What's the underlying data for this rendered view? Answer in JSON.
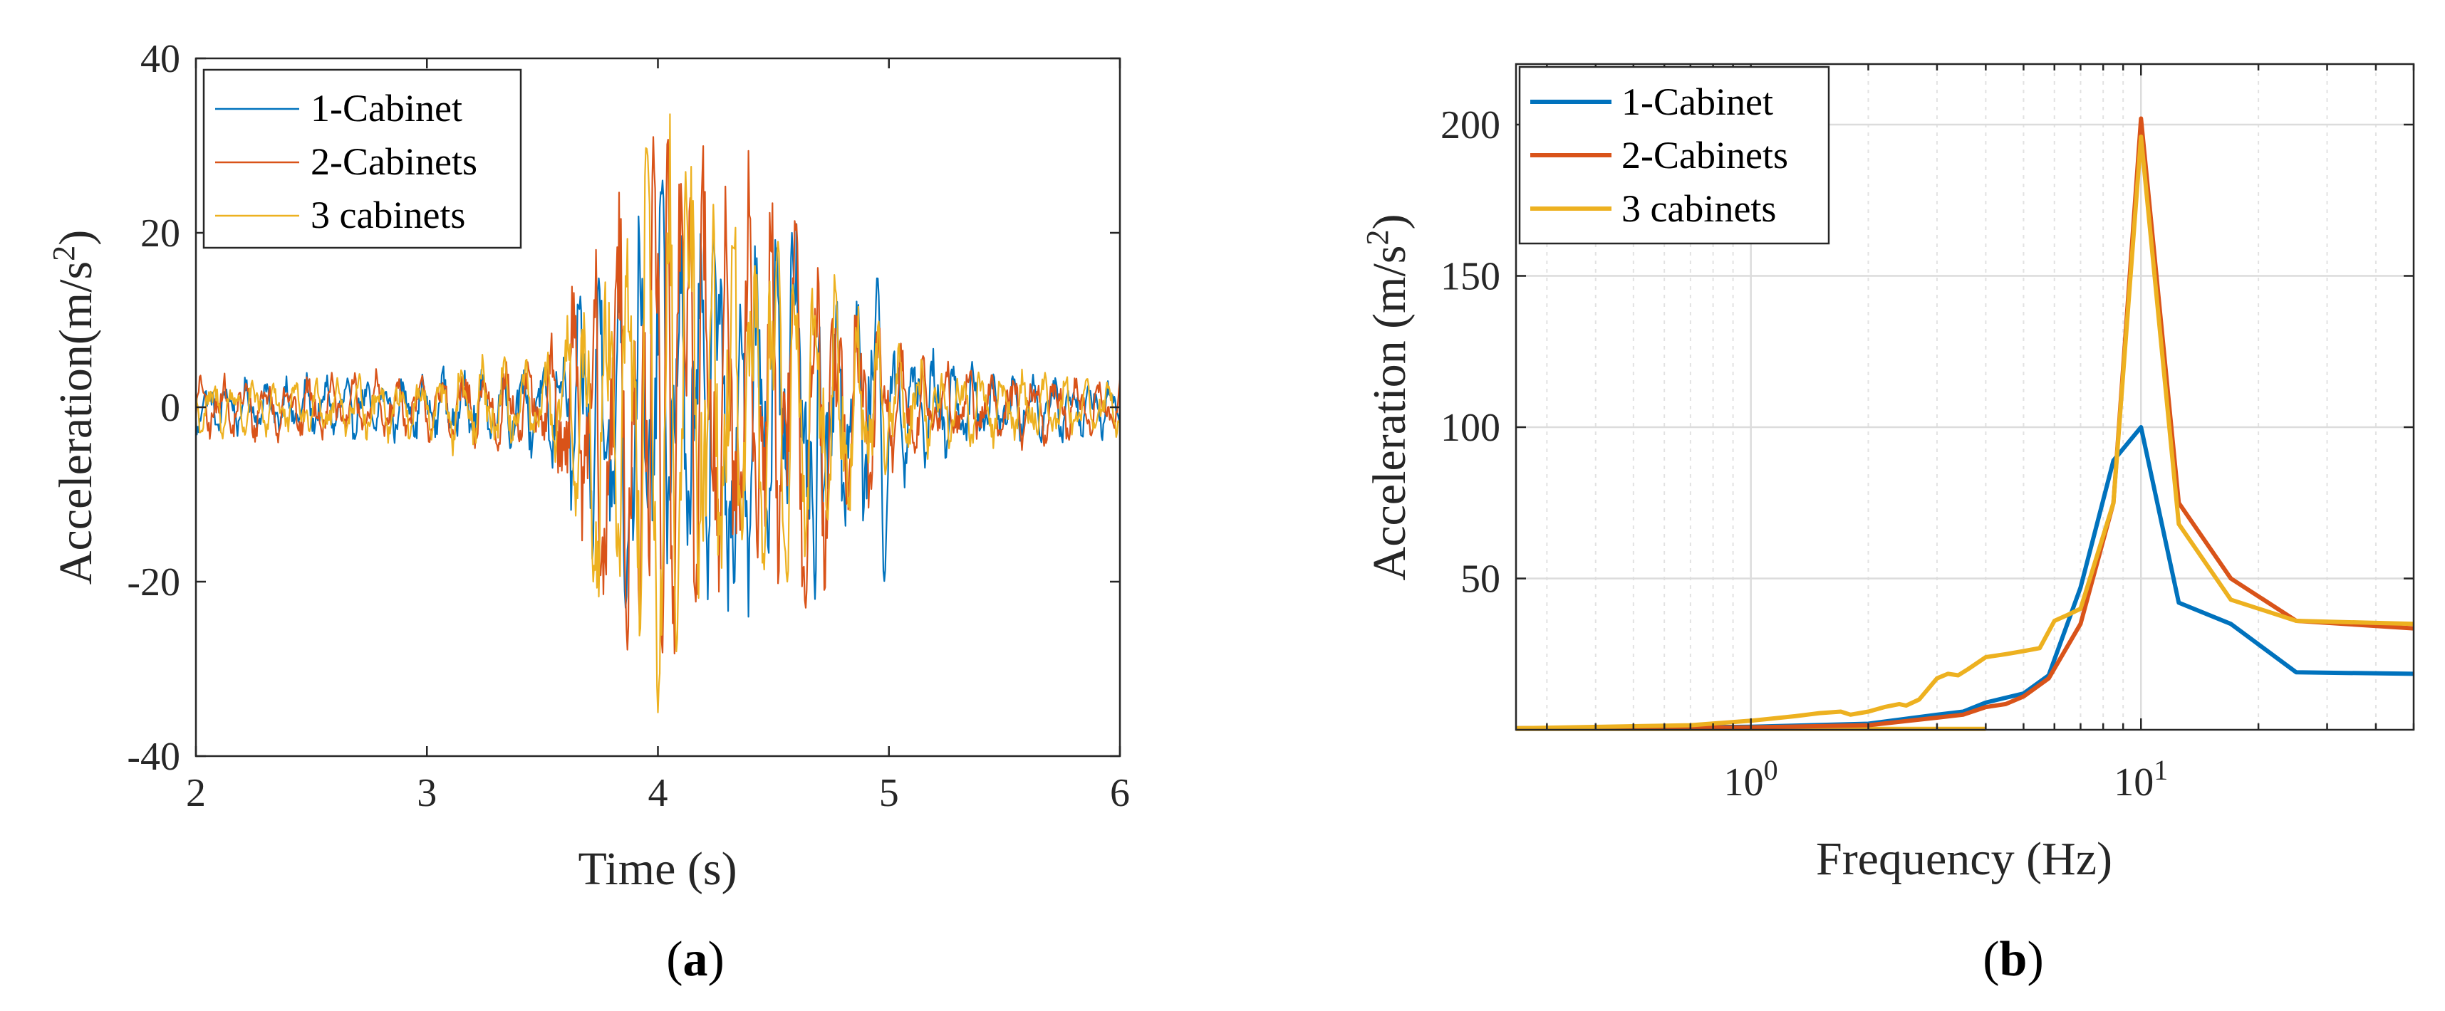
{
  "chart_data": [
    {
      "id": "a",
      "type": "line",
      "caption": "a",
      "xlabel": "Time (s)",
      "ylabel": "Acceleration(m/s",
      "ylabel_sup": "2",
      "ylabel_close": ")",
      "xlim": [
        2,
        6
      ],
      "ylim": [
        -40,
        40
      ],
      "xticks": [
        2,
        3,
        4,
        5,
        6
      ],
      "xtick_labels": [
        "2",
        "3",
        "4",
        "5",
        "6"
      ],
      "yticks": [
        -40,
        -20,
        0,
        20,
        40
      ],
      "ytick_labels": [
        "-40",
        "-20",
        "0",
        "20",
        "40"
      ],
      "grid": false,
      "legend_position": "top-left",
      "series": [
        {
          "name": "1-Cabinet",
          "color": "#0072BD",
          "envelope": [
            [
              2.0,
              3.0
            ],
            [
              3.0,
              3.5
            ],
            [
              3.1,
              4.5
            ],
            [
              3.5,
              5.0
            ],
            [
              3.62,
              10.0
            ],
            [
              3.7,
              17.0
            ],
            [
              3.9,
              20.0
            ],
            [
              4.1,
              20.0
            ],
            [
              4.4,
              20.0
            ],
            [
              4.7,
              17.0
            ],
            [
              4.9,
              13.0
            ],
            [
              5.1,
              8.0
            ],
            [
              5.3,
              5.0
            ],
            [
              5.5,
              4.0
            ],
            [
              6.0,
              3.0
            ]
          ],
          "period": 0.085,
          "phase": 0.7,
          "peaks": [
            {
              "t": 3.86,
              "v": -23
            },
            {
              "t": 4.02,
              "v": 26
            },
            {
              "t": 4.24,
              "v": 20
            },
            {
              "t": 4.33,
              "v": -21
            },
            {
              "t": 4.58,
              "v": 20
            },
            {
              "t": 4.68,
              "v": -22
            },
            {
              "t": 4.95,
              "v": 15
            },
            {
              "t": 4.98,
              "v": -20
            }
          ]
        },
        {
          "name": "2-Cabinets",
          "color": "#D95319",
          "envelope": [
            [
              2.0,
              3.5
            ],
            [
              3.0,
              3.5
            ],
            [
              3.1,
              4.5
            ],
            [
              3.5,
              5.0
            ],
            [
              3.62,
              13.0
            ],
            [
              3.75,
              22.0
            ],
            [
              3.95,
              27.0
            ],
            [
              4.05,
              30.0
            ],
            [
              4.25,
              26.0
            ],
            [
              4.5,
              22.0
            ],
            [
              4.75,
              17.0
            ],
            [
              4.95,
              10.0
            ],
            [
              5.1,
              6.0
            ],
            [
              5.3,
              5.0
            ],
            [
              6.0,
              3.0
            ]
          ],
          "period": 0.095,
          "phase": 0.0,
          "peaks": [
            {
              "t": 3.75,
              "v": -20
            },
            {
              "t": 3.92,
              "v": -24
            },
            {
              "t": 3.98,
              "v": 31
            },
            {
              "t": 4.02,
              "v": -32
            },
            {
              "t": 4.04,
              "v": 34
            },
            {
              "t": 4.14,
              "v": 24
            },
            {
              "t": 4.6,
              "v": 21
            },
            {
              "t": 4.64,
              "v": -23
            }
          ]
        },
        {
          "name": "3 cabinets",
          "color": "#EDB120",
          "envelope": [
            [
              2.0,
              3.0
            ],
            [
              3.0,
              3.5
            ],
            [
              3.1,
              5.0
            ],
            [
              3.5,
              5.0
            ],
            [
              3.62,
              12.0
            ],
            [
              3.75,
              20.0
            ],
            [
              3.95,
              28.0
            ],
            [
              4.05,
              29.0
            ],
            [
              4.25,
              24.0
            ],
            [
              4.5,
              20.0
            ],
            [
              4.75,
              15.0
            ],
            [
              4.95,
              9.0
            ],
            [
              5.1,
              6.0
            ],
            [
              5.3,
              4.5
            ],
            [
              6.0,
              3.0
            ]
          ],
          "period": 0.09,
          "phase": 1.4,
          "peaks": [
            {
              "t": 3.72,
              "v": -20
            },
            {
              "t": 3.95,
              "v": 30
            },
            {
              "t": 4.0,
              "v": -35
            },
            {
              "t": 4.08,
              "v": -28
            },
            {
              "t": 4.12,
              "v": 27
            },
            {
              "t": 4.52,
              "v": 19
            },
            {
              "t": 4.56,
              "v": -20
            }
          ]
        }
      ]
    },
    {
      "id": "b",
      "type": "line",
      "caption": "b",
      "xscale": "log",
      "xlabel": "Frequency (Hz)",
      "ylabel": "Acceleration (m/s",
      "ylabel_sup": "2",
      "ylabel_close": ")",
      "xlim": [
        0.25,
        50
      ],
      "ylim": [
        0,
        220
      ],
      "xticks": [
        1,
        10
      ],
      "xtick_base": "10",
      "xtick_exponents": [
        "0",
        "1"
      ],
      "yticks": [
        50,
        100,
        150,
        200
      ],
      "ytick_labels": [
        "50",
        "100",
        "150",
        "200"
      ],
      "grid": true,
      "legend_position": "top-left",
      "series": [
        {
          "name": "1-Cabinet",
          "color": "#0072BD",
          "x": [
            0.25,
            1.0,
            2.0,
            3.0,
            3.5,
            4.0,
            5.0,
            5.8,
            7.0,
            8.5,
            10.0,
            12.5,
            17.0,
            25.0,
            50.0
          ],
          "y": [
            0.5,
            1.0,
            2.0,
            5.0,
            6.0,
            9.0,
            12.0,
            18.0,
            47.0,
            89.0,
            100.0,
            42.0,
            35.0,
            19.0,
            18.5
          ]
        },
        {
          "name": "2-Cabinets",
          "color": "#D95319",
          "x": [
            0.25,
            1.0,
            2.0,
            3.0,
            3.5,
            4.0,
            4.5,
            5.0,
            5.8,
            7.0,
            8.5,
            10.0,
            12.5,
            17.0,
            25.0,
            50.0
          ],
          "y": [
            0.5,
            0.8,
            1.5,
            4.0,
            5.0,
            7.5,
            8.5,
            11.0,
            17.0,
            35.0,
            75.0,
            202.0,
            75.0,
            50.0,
            36.0,
            33.5
          ]
        },
        {
          "name": "3 cabinets",
          "color": "#EDB120",
          "x": [
            0.25,
            0.7,
            1.0,
            1.3,
            1.5,
            1.7,
            1.8,
            2.0,
            2.2,
            2.4,
            2.5,
            2.7,
            3.0,
            3.2,
            3.4,
            3.6,
            4.0,
            4.5,
            5.0,
            5.5,
            6.0,
            6.5,
            7.0,
            8.5,
            10.0,
            12.5,
            17.0,
            25.0,
            50.0
          ],
          "y": [
            0.5,
            1.5,
            3.0,
            4.5,
            5.5,
            6.0,
            5.0,
            6.0,
            7.5,
            8.5,
            8.0,
            10.0,
            17.0,
            18.5,
            18.0,
            20.0,
            24.0,
            25.0,
            26.0,
            27.0,
            36.0,
            38.0,
            40.0,
            75.0,
            196.0,
            68.0,
            43.0,
            36.0,
            35.0
          ],
          "baseline_x": [
            0.25,
            4.0
          ],
          "baseline_y": [
            0.3,
            0.3
          ]
        }
      ]
    }
  ]
}
